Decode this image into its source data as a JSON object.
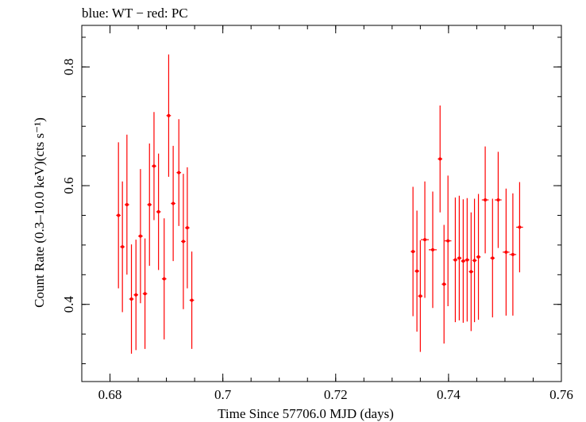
{
  "colors": {
    "pc": "#ff0000",
    "axis": "#000000",
    "background": "#ffffff"
  },
  "chart_data": {
    "type": "scatter",
    "title": "blue: WT − red: PC",
    "xlabel": "Time Since 57706.0 MJD (days)",
    "ylabel": "Count Rate (0.3–10.0 keV)(cts s⁻¹)",
    "xlim": [
      0.675,
      0.76
    ],
    "ylim": [
      0.27,
      0.87
    ],
    "xticks": [
      {
        "value": 0.68,
        "label": "0.68"
      },
      {
        "value": 0.7,
        "label": "0.7"
      },
      {
        "value": 0.72,
        "label": "0.72"
      },
      {
        "value": 0.74,
        "label": "0.74"
      },
      {
        "value": 0.76,
        "label": "0.76"
      }
    ],
    "yticks": [
      {
        "value": 0.4,
        "label": "0.4"
      },
      {
        "value": 0.6,
        "label": "0.6"
      },
      {
        "value": 0.8,
        "label": "0.8"
      }
    ],
    "series": [
      {
        "name": "PC",
        "color": "#ff0000",
        "points": [
          {
            "x": 0.6815,
            "y": 0.55,
            "xerr": 0.0004,
            "yerr": 0.123
          },
          {
            "x": 0.6822,
            "y": 0.497,
            "xerr": 0.0004,
            "yerr": 0.11
          },
          {
            "x": 0.683,
            "y": 0.568,
            "xerr": 0.0004,
            "yerr": 0.118
          },
          {
            "x": 0.6838,
            "y": 0.409,
            "xerr": 0.0004,
            "yerr": 0.092
          },
          {
            "x": 0.6846,
            "y": 0.416,
            "xerr": 0.0004,
            "yerr": 0.093
          },
          {
            "x": 0.6854,
            "y": 0.515,
            "xerr": 0.0004,
            "yerr": 0.113
          },
          {
            "x": 0.6862,
            "y": 0.418,
            "xerr": 0.0004,
            "yerr": 0.093
          },
          {
            "x": 0.687,
            "y": 0.568,
            "xerr": 0.0004,
            "yerr": 0.103
          },
          {
            "x": 0.6878,
            "y": 0.633,
            "xerr": 0.0004,
            "yerr": 0.091
          },
          {
            "x": 0.6886,
            "y": 0.556,
            "xerr": 0.0004,
            "yerr": 0.098
          },
          {
            "x": 0.6896,
            "y": 0.443,
            "xerr": 0.0004,
            "yerr": 0.102
          },
          {
            "x": 0.6904,
            "y": 0.718,
            "xerr": 0.0004,
            "yerr": 0.103
          },
          {
            "x": 0.6912,
            "y": 0.57,
            "xerr": 0.0004,
            "yerr": 0.097
          },
          {
            "x": 0.6922,
            "y": 0.622,
            "xerr": 0.0004,
            "yerr": 0.09
          },
          {
            "x": 0.693,
            "y": 0.506,
            "xerr": 0.0004,
            "yerr": 0.114
          },
          {
            "x": 0.6937,
            "y": 0.529,
            "xerr": 0.0004,
            "yerr": 0.102
          },
          {
            "x": 0.6945,
            "y": 0.407,
            "xerr": 0.0004,
            "yerr": 0.082
          },
          {
            "x": 0.7337,
            "y": 0.489,
            "xerr": 0.0004,
            "yerr": 0.109
          },
          {
            "x": 0.7344,
            "y": 0.456,
            "xerr": 0.0004,
            "yerr": 0.102
          },
          {
            "x": 0.735,
            "y": 0.414,
            "xerr": 0.0004,
            "yerr": 0.094
          },
          {
            "x": 0.7358,
            "y": 0.509,
            "xerr": 0.0007,
            "yerr": 0.098
          },
          {
            "x": 0.7372,
            "y": 0.492,
            "xerr": 0.0007,
            "yerr": 0.098
          },
          {
            "x": 0.7385,
            "y": 0.645,
            "xerr": 0.0004,
            "yerr": 0.09
          },
          {
            "x": 0.7392,
            "y": 0.434,
            "xerr": 0.0004,
            "yerr": 0.1
          },
          {
            "x": 0.7399,
            "y": 0.507,
            "xerr": 0.0006,
            "yerr": 0.11
          },
          {
            "x": 0.7412,
            "y": 0.475,
            "xerr": 0.0004,
            "yerr": 0.105
          },
          {
            "x": 0.7419,
            "y": 0.478,
            "xerr": 0.0004,
            "yerr": 0.105
          },
          {
            "x": 0.7426,
            "y": 0.473,
            "xerr": 0.0004,
            "yerr": 0.104
          },
          {
            "x": 0.7433,
            "y": 0.475,
            "xerr": 0.0004,
            "yerr": 0.104
          },
          {
            "x": 0.744,
            "y": 0.455,
            "xerr": 0.0004,
            "yerr": 0.1
          },
          {
            "x": 0.7446,
            "y": 0.474,
            "xerr": 0.0004,
            "yerr": 0.104
          },
          {
            "x": 0.7453,
            "y": 0.48,
            "xerr": 0.0004,
            "yerr": 0.106
          },
          {
            "x": 0.7465,
            "y": 0.576,
            "xerr": 0.0006,
            "yerr": 0.09
          },
          {
            "x": 0.7478,
            "y": 0.478,
            "xerr": 0.0004,
            "yerr": 0.1
          },
          {
            "x": 0.7488,
            "y": 0.576,
            "xerr": 0.0006,
            "yerr": 0.081
          },
          {
            "x": 0.7502,
            "y": 0.488,
            "xerr": 0.0006,
            "yerr": 0.107
          },
          {
            "x": 0.7514,
            "y": 0.484,
            "xerr": 0.0006,
            "yerr": 0.103
          },
          {
            "x": 0.7526,
            "y": 0.53,
            "xerr": 0.0006,
            "yerr": 0.076
          }
        ]
      }
    ]
  }
}
